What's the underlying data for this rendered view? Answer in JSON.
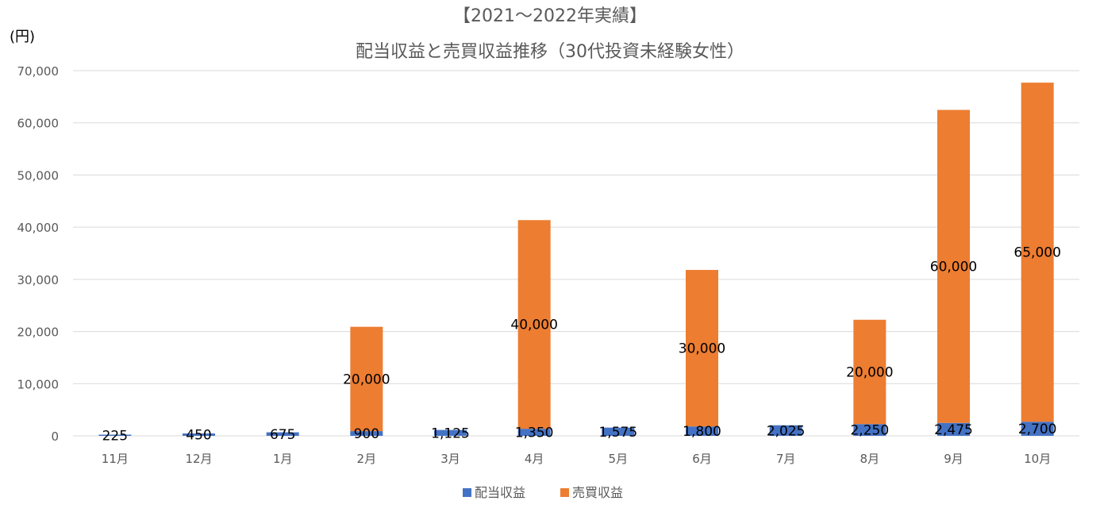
{
  "chart_data": {
    "type": "bar",
    "stacked": true,
    "title_line1": "【2021～2022年実績】",
    "title_line2": "配当収益と売買収益推移（30代投資未経験女性）",
    "ylabel": "(円)",
    "xlabel": "",
    "ylim": [
      0,
      70000
    ],
    "ytick_step": 10000,
    "ytick_labels": [
      "0",
      "10,000",
      "20,000",
      "30,000",
      "40,000",
      "50,000",
      "60,000",
      "70,000"
    ],
    "grid": true,
    "legend_position": "bottom",
    "categories": [
      "11月",
      "12月",
      "1月",
      "2月",
      "3月",
      "4月",
      "5月",
      "6月",
      "7月",
      "8月",
      "9月",
      "10月"
    ],
    "series": [
      {
        "name": "配当収益",
        "color": "#4472c4",
        "values": [
          225,
          450,
          675,
          900,
          1125,
          1350,
          1575,
          1800,
          2025,
          2250,
          2475,
          2700
        ],
        "labels": [
          "225",
          "450",
          "675",
          "900",
          "1,125",
          "1,350",
          "1,575",
          "1,800",
          "2,025",
          "2,250",
          "2,475",
          "2,700"
        ]
      },
      {
        "name": "売買収益",
        "color": "#ed7d31",
        "values": [
          0,
          0,
          0,
          20000,
          0,
          40000,
          0,
          30000,
          0,
          20000,
          60000,
          65000
        ],
        "labels": [
          "",
          "",
          "",
          "20,000",
          "",
          "40,000",
          "",
          "30,000",
          "",
          "20,000",
          "60,000",
          "65,000"
        ]
      }
    ]
  }
}
